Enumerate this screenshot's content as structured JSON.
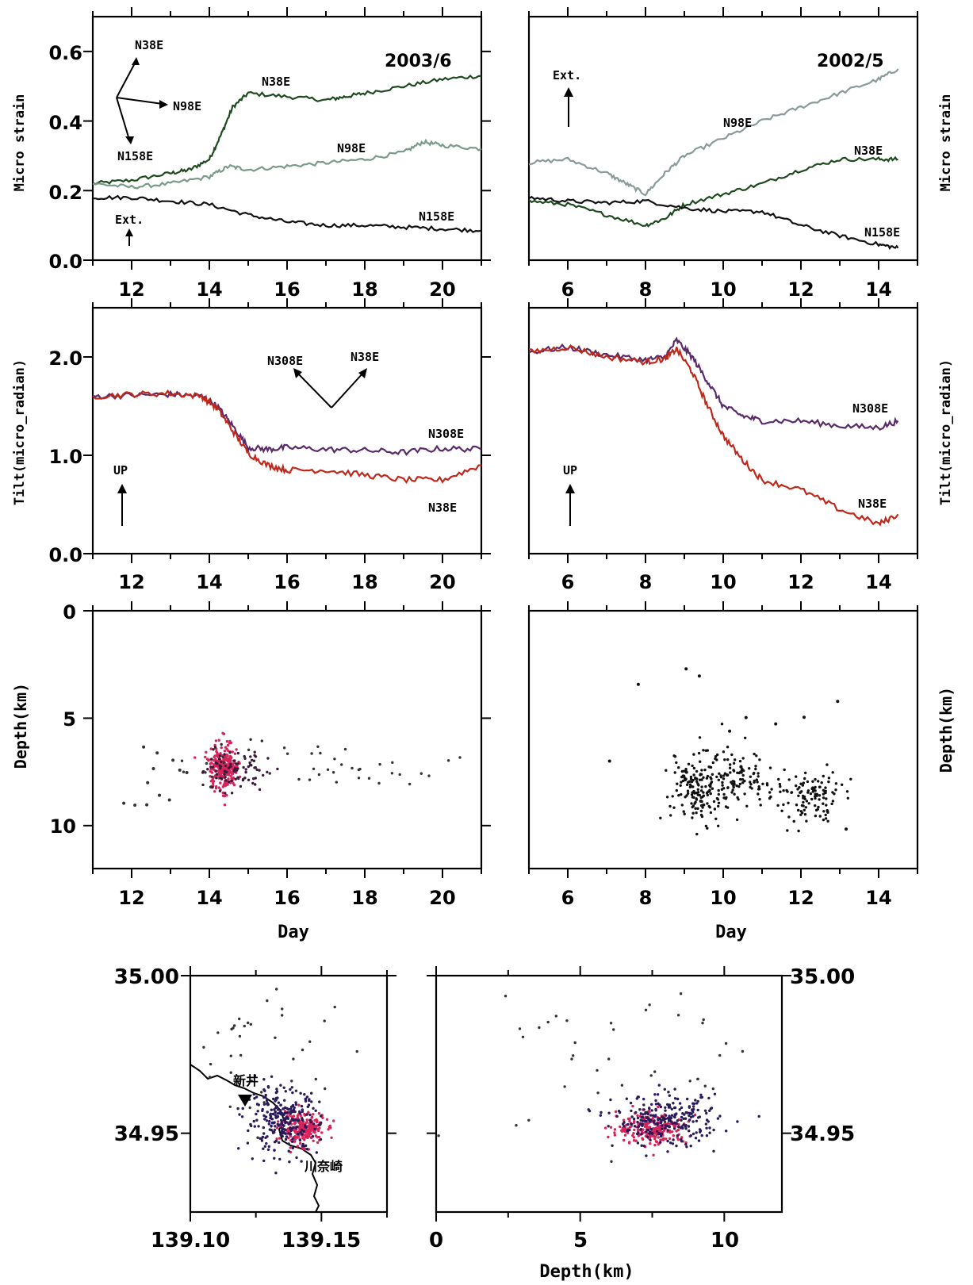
{
  "chart_data": [
    {
      "id": "strain_2003",
      "type": "line",
      "title": "2003/6",
      "ylabel": "Micro strain",
      "xlim": [
        11,
        21
      ],
      "ylim": [
        0,
        0.7
      ],
      "xticks": [
        12,
        14,
        16,
        18,
        20
      ],
      "xtick_labels": [
        "12",
        "14",
        "16",
        "18",
        "20"
      ],
      "yticks": [
        0,
        0.2,
        0.4,
        0.6
      ],
      "ytick_labels": [
        "0.0",
        "0.2",
        "0.4",
        "0.6"
      ],
      "series": [
        {
          "name": "N38E",
          "color": "#1f4a1f",
          "x": [
            11,
            12,
            13,
            13.5,
            14,
            14.3,
            14.6,
            15,
            16,
            17,
            17.5,
            18,
            19,
            20,
            21
          ],
          "y": [
            0.22,
            0.23,
            0.25,
            0.26,
            0.29,
            0.36,
            0.44,
            0.48,
            0.47,
            0.46,
            0.47,
            0.48,
            0.5,
            0.52,
            0.53
          ]
        },
        {
          "name": "N98E",
          "color": "#7a9a8a",
          "x": [
            11,
            12,
            13,
            14,
            14.5,
            15,
            16,
            17,
            18,
            19,
            19.5,
            20,
            21
          ],
          "y": [
            0.22,
            0.21,
            0.22,
            0.24,
            0.27,
            0.26,
            0.27,
            0.28,
            0.29,
            0.31,
            0.34,
            0.33,
            0.32
          ]
        },
        {
          "name": "N158E",
          "color": "#111111",
          "x": [
            11,
            12,
            13,
            14,
            15,
            16,
            17,
            18,
            19,
            20,
            21
          ],
          "y": [
            0.18,
            0.18,
            0.17,
            0.16,
            0.13,
            0.11,
            0.1,
            0.1,
            0.095,
            0.09,
            0.085
          ]
        }
      ],
      "annotations": {
        "rosette": [
          "N38E",
          "N98E",
          "N158E"
        ],
        "ext": "Ext."
      }
    },
    {
      "id": "strain_2002",
      "type": "line",
      "title": "2002/5",
      "ylabel": "Micro strain",
      "xlim": [
        5,
        15
      ],
      "ylim": [
        0,
        0.7
      ],
      "xticks": [
        6,
        8,
        10,
        12,
        14
      ],
      "xtick_labels": [
        "6",
        "8",
        "10",
        "12",
        "14"
      ],
      "series": [
        {
          "name": "N98E",
          "color": "#8a9a9a",
          "x": [
            5,
            6,
            7,
            7.5,
            8,
            8.5,
            9,
            10,
            11,
            12,
            13,
            14,
            14.5
          ],
          "y": [
            0.28,
            0.29,
            0.25,
            0.22,
            0.19,
            0.25,
            0.3,
            0.35,
            0.4,
            0.44,
            0.48,
            0.52,
            0.55
          ]
        },
        {
          "name": "N38E",
          "color": "#1f4a1f",
          "x": [
            5,
            6,
            7,
            8,
            8.5,
            9,
            10,
            11,
            12,
            13,
            14,
            14.5
          ],
          "y": [
            0.17,
            0.16,
            0.13,
            0.1,
            0.12,
            0.16,
            0.19,
            0.22,
            0.26,
            0.29,
            0.29,
            0.29
          ]
        },
        {
          "name": "N158E",
          "color": "#111111",
          "x": [
            5,
            6,
            7,
            8,
            9,
            10,
            11,
            12,
            13,
            14,
            14.5
          ],
          "y": [
            0.18,
            0.17,
            0.165,
            0.17,
            0.15,
            0.14,
            0.14,
            0.1,
            0.07,
            0.045,
            0.035
          ]
        }
      ],
      "annotations": {
        "ext": "Ext."
      }
    },
    {
      "id": "tilt_2003",
      "type": "line",
      "ylabel": "Tilt(micro_radian)",
      "xlim": [
        11,
        21
      ],
      "ylim": [
        0,
        2.5
      ],
      "xticks": [
        12,
        14,
        16,
        18,
        20
      ],
      "xtick_labels": [
        "12",
        "14",
        "16",
        "18",
        "20"
      ],
      "yticks": [
        0,
        1,
        2
      ],
      "ytick_labels": [
        "0.0",
        "1.0",
        "2.0"
      ],
      "series": [
        {
          "name": "N308E",
          "color": "#5a2a6a",
          "x": [
            11,
            12,
            13,
            13.8,
            14.2,
            14.6,
            15,
            15.5,
            16,
            17,
            18,
            19,
            20,
            21
          ],
          "y": [
            1.6,
            1.61,
            1.62,
            1.6,
            1.5,
            1.3,
            1.08,
            1.06,
            1.08,
            1.06,
            1.05,
            1.03,
            1.07,
            1.06
          ]
        },
        {
          "name": "N38E",
          "color": "#c0281a",
          "x": [
            11,
            12,
            13,
            13.8,
            14.2,
            14.6,
            15,
            15.5,
            16,
            17,
            18,
            19,
            20,
            21
          ],
          "y": [
            1.6,
            1.62,
            1.63,
            1.6,
            1.48,
            1.25,
            1.02,
            0.9,
            0.85,
            0.85,
            0.8,
            0.75,
            0.75,
            0.9
          ]
        }
      ],
      "annotations": {
        "rosette": [
          "N308E",
          "N38E"
        ],
        "up": "UP"
      }
    },
    {
      "id": "tilt_2002",
      "type": "line",
      "ylabel": "Tilt(micro_radian)",
      "xlim": [
        5,
        15
      ],
      "ylim": [
        0,
        2.5
      ],
      "xticks": [
        6,
        8,
        10,
        12,
        14
      ],
      "xtick_labels": [
        "6",
        "8",
        "10",
        "12",
        "14"
      ],
      "series": [
        {
          "name": "N308E",
          "color": "#5a2a6a",
          "x": [
            5,
            6,
            7,
            8,
            8.5,
            8.8,
            9.2,
            9.6,
            10,
            10.5,
            11,
            12,
            13,
            14,
            14.5
          ],
          "y": [
            2.05,
            2.1,
            2.02,
            1.97,
            2.0,
            2.17,
            2.0,
            1.75,
            1.5,
            1.4,
            1.35,
            1.35,
            1.3,
            1.28,
            1.35
          ]
        },
        {
          "name": "N38E",
          "color": "#c0281a",
          "x": [
            5,
            6,
            7,
            8,
            8.5,
            8.8,
            9.2,
            9.6,
            10,
            10.5,
            11,
            12,
            13,
            14,
            14.5
          ],
          "y": [
            2.05,
            2.1,
            2.0,
            1.95,
            1.98,
            2.08,
            1.85,
            1.5,
            1.2,
            0.95,
            0.75,
            0.65,
            0.45,
            0.3,
            0.4
          ]
        }
      ],
      "annotations": {
        "up": "UP"
      }
    },
    {
      "id": "depth_2003",
      "type": "scatter",
      "xlabel": "Day",
      "ylabel": "Depth(km)",
      "xlim": [
        11,
        21
      ],
      "ylim": [
        12,
        0
      ],
      "xticks": [
        12,
        14,
        16,
        18,
        20
      ],
      "xtick_labels": [
        "12",
        "14",
        "16",
        "18",
        "20"
      ],
      "yticks": [
        0,
        5,
        10
      ],
      "ytick_labels": [
        "0",
        "5",
        "10"
      ],
      "clusters": [
        {
          "color": "#d6245a",
          "n": 260,
          "x_mean": 14.35,
          "x_sd": 0.18,
          "y_mean": 7.3,
          "y_sd": 0.55
        },
        {
          "color": "#3a1a3a",
          "n": 90,
          "x_mean": 14.7,
          "x_sd": 0.45,
          "y_mean": 7.3,
          "y_sd": 0.5
        },
        {
          "color": "#333333",
          "n": 40,
          "x_mean": 16.8,
          "x_sd": 1.9,
          "y_mean": 7.2,
          "y_sd": 0.45
        },
        {
          "color": "#333333",
          "n": 12,
          "x_mean": 12.8,
          "x_sd": 0.45,
          "y_mean": 7.9,
          "y_sd": 0.8
        }
      ]
    },
    {
      "id": "depth_2002",
      "type": "scatter",
      "xlabel": "Day",
      "ylabel": "Depth(km)",
      "xlim": [
        5,
        15
      ],
      "ylim": [
        12,
        0
      ],
      "xticks": [
        6,
        8,
        10,
        12,
        14
      ],
      "xtick_labels": [
        "6",
        "8",
        "10",
        "12",
        "14"
      ],
      "clusters": [
        {
          "color": "#111111",
          "n": 150,
          "x_mean": 9.3,
          "x_sd": 0.35,
          "y_mean": 8.3,
          "y_sd": 0.8
        },
        {
          "color": "#111111",
          "n": 110,
          "x_mean": 10.3,
          "x_sd": 0.4,
          "y_mean": 7.9,
          "y_sd": 0.7
        },
        {
          "color": "#111111",
          "n": 120,
          "x_mean": 12.2,
          "x_sd": 0.45,
          "y_mean": 8.6,
          "y_sd": 0.6
        },
        {
          "color": "#111111",
          "n": 14,
          "x_mean": 10,
          "x_sd": 2.8,
          "y_mean": 5,
          "y_sd": 2.2
        }
      ]
    },
    {
      "id": "epicenter_map",
      "type": "scatter",
      "xlim": [
        139.1,
        139.175
      ],
      "ylim": [
        34.925,
        35.0
      ],
      "xticks": [
        139.1,
        139.15
      ],
      "xtick_labels": [
        "139.10",
        "139.15"
      ],
      "yticks": [
        35.0,
        34.95
      ],
      "ytick_labels": [
        "35.00",
        "34.95"
      ],
      "place_labels": [
        "新井",
        "川奈崎"
      ],
      "clusters": [
        {
          "color": "#d6245a",
          "n": 220,
          "x_mean": 139.143,
          "x_sd": 0.004,
          "y_mean": 34.9515,
          "y_sd": 0.0025
        },
        {
          "color": "#2a1a5a",
          "n": 260,
          "x_mean": 139.135,
          "x_sd": 0.007,
          "y_mean": 34.954,
          "y_sd": 0.005
        },
        {
          "color": "#333333",
          "n": 40,
          "x_mean": 139.13,
          "x_sd": 0.02,
          "y_mean": 34.975,
          "y_sd": 0.015
        }
      ]
    },
    {
      "id": "depth_section",
      "type": "scatter",
      "xlabel": "Depth(km)",
      "xlim": [
        0,
        12
      ],
      "ylim": [
        34.925,
        35.0
      ],
      "xticks": [
        0,
        5,
        10
      ],
      "xtick_labels": [
        "0",
        "5",
        "10"
      ],
      "yticks": [
        35.0,
        34.95
      ],
      "ytick_labels": [
        "35.00",
        "34.95"
      ],
      "clusters": [
        {
          "color": "#d6245a",
          "n": 220,
          "x_mean": 7.5,
          "x_sd": 0.6,
          "y_mean": 34.9515,
          "y_sd": 0.0025
        },
        {
          "color": "#2a1a5a",
          "n": 260,
          "x_mean": 8.0,
          "x_sd": 0.9,
          "y_mean": 34.954,
          "y_sd": 0.004
        },
        {
          "color": "#333333",
          "n": 40,
          "x_mean": 6.5,
          "x_sd": 3,
          "y_mean": 34.975,
          "y_sd": 0.015
        }
      ]
    }
  ]
}
